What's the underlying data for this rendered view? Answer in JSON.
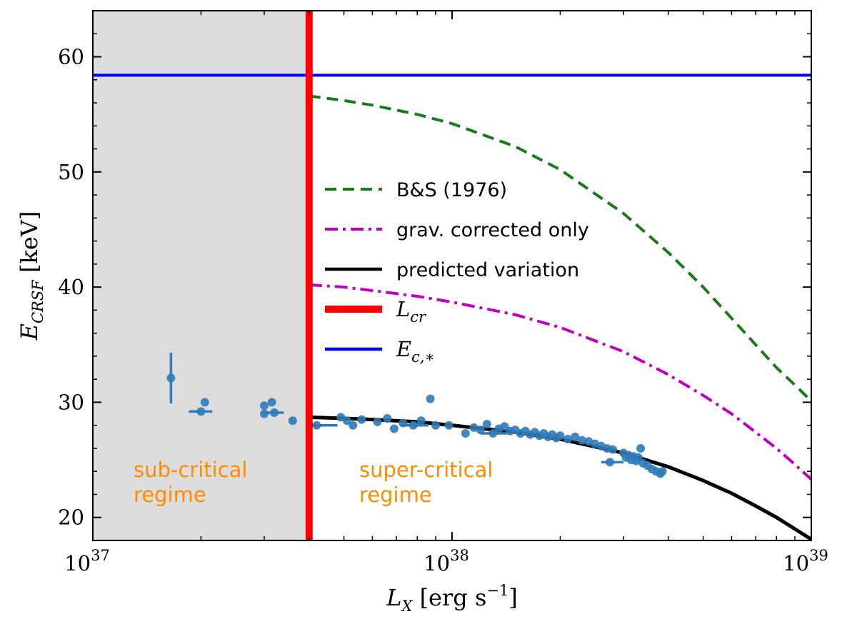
{
  "chart_data": {
    "type": "line",
    "xscale": "log",
    "xlim": [
      1e+37,
      1e+39
    ],
    "ylim": [
      18,
      64
    ],
    "xlabel": "L_X [erg s^-1]",
    "ylabel": "E_CRSF [keV]",
    "x_ticks": [
      {
        "value": 1e+37,
        "base": "10",
        "exp": "37"
      },
      {
        "value": 1e+38,
        "base": "10",
        "exp": "38"
      },
      {
        "value": 1e+39,
        "base": "10",
        "exp": "39"
      }
    ],
    "y_ticks": [
      {
        "value": 20,
        "label": "20"
      },
      {
        "value": 30,
        "label": "30"
      },
      {
        "value": 40,
        "label": "40"
      },
      {
        "value": 50,
        "label": "50"
      },
      {
        "value": 60,
        "label": "60"
      }
    ],
    "colors": {
      "shade": "#dcdcdc",
      "bs": "#1a7a1a",
      "grav": "#c000c0",
      "pred": "#000000",
      "lcr": "#ff0000",
      "ec": "#0000ff",
      "points": "#2f7ab8",
      "regime": "#ff8c00"
    },
    "shaded_region": {
      "x_from": 1e+37,
      "x_to": 4e+37
    },
    "L_cr": 4e+37,
    "E_c_star": 58.4,
    "series": [
      {
        "name": "B&S (1976)",
        "style": "dashed",
        "color": "#1a7a1a",
        "x": [
          4e+37,
          5e+37,
          6e+37,
          8e+37,
          1e+38,
          1.5e+38,
          2e+38,
          3e+38,
          4e+38,
          5e+38,
          6e+38,
          7e+38,
          8e+38,
          9e+38,
          1e+39
        ],
        "y": [
          56.6,
          56.2,
          55.8,
          55.0,
          54.2,
          52.2,
          50.2,
          46.4,
          43.0,
          40.0,
          37.3,
          35.0,
          33.0,
          31.5,
          30.1
        ]
      },
      {
        "name": "grav. corrected only",
        "style": "dashdot",
        "color": "#c000c0",
        "x": [
          4e+37,
          5e+37,
          6e+37,
          8e+37,
          1e+38,
          1.5e+38,
          2e+38,
          3e+38,
          4e+38,
          5e+38,
          6e+38,
          7e+38,
          8e+38,
          9e+38,
          1e+39
        ],
        "y": [
          40.2,
          40.0,
          39.7,
          39.2,
          38.7,
          37.6,
          36.5,
          34.4,
          32.4,
          30.6,
          29.0,
          27.4,
          26.0,
          24.6,
          23.3
        ]
      },
      {
        "name": "predicted variation",
        "style": "solid",
        "color": "#000000",
        "x": [
          4e+37,
          5e+37,
          6e+37,
          8e+37,
          1e+38,
          1.5e+38,
          2e+38,
          3e+38,
          4e+38,
          5e+38,
          6e+38,
          7e+38,
          8e+38,
          9e+38,
          1e+39
        ],
        "y": [
          28.7,
          28.6,
          28.5,
          28.3,
          28.0,
          27.4,
          26.8,
          25.6,
          24.4,
          23.2,
          22.1,
          21.0,
          20.0,
          19.0,
          18.1
        ]
      }
    ],
    "points": [
      {
        "x": 1.65e+37,
        "y": 32.1,
        "yerr": 2.2
      },
      {
        "x": 2e+37,
        "y": 29.2,
        "xerr": [
          1.5e+36,
          1.5e+36
        ]
      },
      {
        "x": 2.05e+37,
        "y": 30.0
      },
      {
        "x": 3e+37,
        "y": 29.7
      },
      {
        "x": 3e+37,
        "y": 29.0
      },
      {
        "x": 3.15e+37,
        "y": 30.0
      },
      {
        "x": 3.2e+37,
        "y": 29.1,
        "xerr": [
          2e+36,
          2e+36
        ]
      },
      {
        "x": 3.6e+37,
        "y": 28.4
      },
      {
        "x": 4.2e+37,
        "y": 28.0,
        "xerr": [
          2e+36,
          6e+36
        ]
      },
      {
        "x": 4.9e+37,
        "y": 28.7
      },
      {
        "x": 5.1e+37,
        "y": 28.4
      },
      {
        "x": 5.3e+37,
        "y": 28.0
      },
      {
        "x": 5.6e+37,
        "y": 28.5
      },
      {
        "x": 6.2e+37,
        "y": 28.3
      },
      {
        "x": 6.6e+37,
        "y": 28.6
      },
      {
        "x": 6.9e+37,
        "y": 27.7
      },
      {
        "x": 7.3e+37,
        "y": 28.2
      },
      {
        "x": 7.8e+37,
        "y": 28.0,
        "xerr": [
          6e+36,
          8e+36
        ]
      },
      {
        "x": 8.2e+37,
        "y": 28.4
      },
      {
        "x": 8.7e+37,
        "y": 30.3
      },
      {
        "x": 9e+37,
        "y": 28.0
      },
      {
        "x": 9.8e+37,
        "y": 28.0
      },
      {
        "x": 1.09e+38,
        "y": 27.3
      },
      {
        "x": 1.15e+38,
        "y": 27.8
      },
      {
        "x": 1.2e+38,
        "y": 27.6
      },
      {
        "x": 1.25e+38,
        "y": 28.1
      },
      {
        "x": 1.3e+38,
        "y": 27.3,
        "xerr": [
          1e+37,
          1.2e+37
        ]
      },
      {
        "x": 1.35e+38,
        "y": 27.7
      },
      {
        "x": 1.4e+38,
        "y": 27.9
      },
      {
        "x": 1.45e+38,
        "y": 27.5
      },
      {
        "x": 1.5e+38,
        "y": 27.6
      },
      {
        "x": 1.55e+38,
        "y": 27.3
      },
      {
        "x": 1.6e+38,
        "y": 27.5
      },
      {
        "x": 1.65e+38,
        "y": 27.2
      },
      {
        "x": 1.7e+38,
        "y": 27.4
      },
      {
        "x": 1.75e+38,
        "y": 27.1
      },
      {
        "x": 1.8e+38,
        "y": 27.3
      },
      {
        "x": 1.85e+38,
        "y": 27.0
      },
      {
        "x": 1.9e+38,
        "y": 27.2
      },
      {
        "x": 1.95e+38,
        "y": 26.9
      },
      {
        "x": 2e+38,
        "y": 27.1
      },
      {
        "x": 2.1e+38,
        "y": 26.8
      },
      {
        "x": 2.2e+38,
        "y": 27.0
      },
      {
        "x": 2.3e+38,
        "y": 26.7
      },
      {
        "x": 2.4e+38,
        "y": 26.6
      },
      {
        "x": 2.5e+38,
        "y": 26.4
      },
      {
        "x": 2.6e+38,
        "y": 26.2
      },
      {
        "x": 2.7e+38,
        "y": 26.0
      },
      {
        "x": 2.8e+38,
        "y": 25.9
      },
      {
        "x": 2.75e+38,
        "y": 24.8,
        "xerr": [
          1.5e+37,
          2.5e+37
        ]
      },
      {
        "x": 3e+38,
        "y": 25.6
      },
      {
        "x": 3.05e+38,
        "y": 25.2
      },
      {
        "x": 3.1e+38,
        "y": 25.4
      },
      {
        "x": 3.15e+38,
        "y": 25.0
      },
      {
        "x": 3.2e+38,
        "y": 25.3
      },
      {
        "x": 3.25e+38,
        "y": 24.9
      },
      {
        "x": 3.3e+38,
        "y": 25.2
      },
      {
        "x": 3.35e+38,
        "y": 26.0
      },
      {
        "x": 3.4e+38,
        "y": 24.7
      },
      {
        "x": 3.5e+38,
        "y": 24.5
      },
      {
        "x": 3.6e+38,
        "y": 24.2
      },
      {
        "x": 3.7e+38,
        "y": 24.0
      },
      {
        "x": 3.8e+38,
        "y": 23.8
      },
      {
        "x": 3.85e+38,
        "y": 24.0
      }
    ],
    "legend": [
      {
        "label": "B&S (1976)",
        "style": "dashed",
        "color": "#1a7a1a"
      },
      {
        "label": "grav. corrected only",
        "style": "dashdot",
        "color": "#c000c0"
      },
      {
        "label": "predicted variation",
        "style": "solid",
        "color": "#000000"
      },
      {
        "label": "L",
        "sub": "cr",
        "style": "thick",
        "color": "#ff0000"
      },
      {
        "label": "E",
        "sub": "c,∗",
        "style": "solid-thin",
        "color": "#0000ff"
      }
    ],
    "annotations": [
      {
        "key": "sub",
        "lines": [
          "sub-critical",
          "regime"
        ]
      },
      {
        "key": "super",
        "lines": [
          "super-critical",
          "regime"
        ]
      }
    ],
    "legend_position": "center-right"
  }
}
